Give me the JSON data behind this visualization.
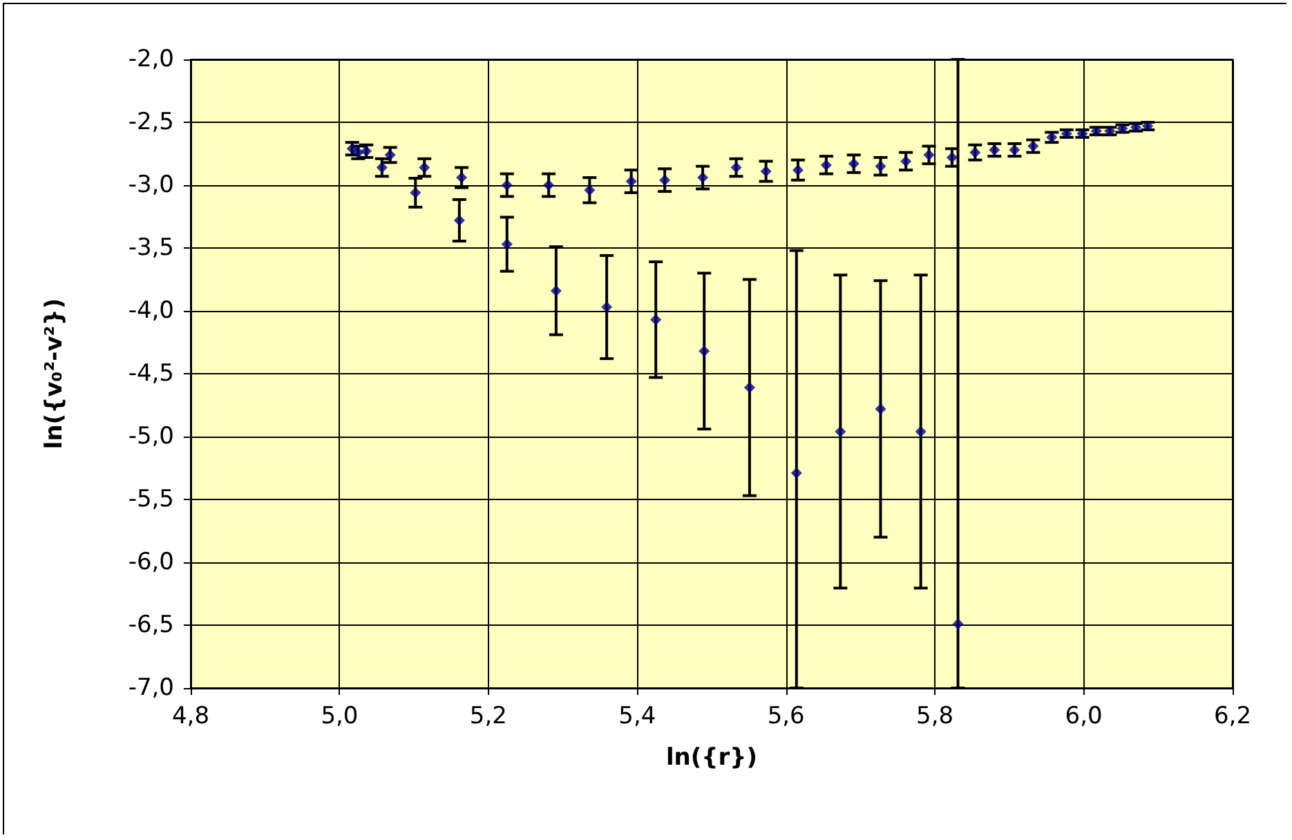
{
  "chart_data": {
    "type": "scatter",
    "xlabel": "ln({r})",
    "ylabel": "ln({v₀²-v²})",
    "xlim": [
      4.8,
      6.2
    ],
    "ylim": [
      -7,
      -2
    ],
    "xticks": [
      {
        "value": 4.8,
        "label": "4,8"
      },
      {
        "value": 5.0,
        "label": "5,0"
      },
      {
        "value": 5.2,
        "label": "5,2"
      },
      {
        "value": 5.4,
        "label": "5,4"
      },
      {
        "value": 5.6,
        "label": "5,6"
      },
      {
        "value": 5.8,
        "label": "5,8"
      },
      {
        "value": 6.0,
        "label": "6,0"
      },
      {
        "value": 6.2,
        "label": "6,2"
      }
    ],
    "yticks": [
      {
        "value": -7,
        "label": "-7,0"
      },
      {
        "value": -6.5,
        "label": "-6,5"
      },
      {
        "value": -6,
        "label": "-6,0"
      },
      {
        "value": -5.5,
        "label": "-5,5"
      },
      {
        "value": -5,
        "label": "-5,0"
      },
      {
        "value": -4.5,
        "label": "-4,5"
      },
      {
        "value": -4,
        "label": "-4,0"
      },
      {
        "value": -3.5,
        "label": "-3,5"
      },
      {
        "value": -3,
        "label": "-3,0"
      },
      {
        "value": -2.5,
        "label": "-2,5"
      },
      {
        "value": -2,
        "label": "-2,0"
      }
    ],
    "grid": true,
    "marker": "diamond",
    "series": [
      {
        "color": "#000080",
        "x": [
          5.017,
          5.025,
          5.036,
          5.057,
          5.068,
          5.114,
          5.164,
          5.225,
          5.281,
          5.336,
          5.392,
          5.437,
          5.488,
          5.533,
          5.573,
          5.616,
          5.654,
          5.691,
          5.727,
          5.761,
          5.792,
          5.823,
          5.854,
          5.88,
          5.907,
          5.932,
          5.957,
          5.977,
          5.998,
          6.017,
          6.035,
          6.052,
          6.07,
          6.086
        ],
        "values": [
          -2.71,
          -2.74,
          -2.73,
          -2.86,
          -2.76,
          -2.86,
          -2.94,
          -3.0,
          -3.0,
          -3.04,
          -2.97,
          -2.96,
          -2.94,
          -2.86,
          -2.89,
          -2.88,
          -2.84,
          -2.83,
          -2.85,
          -2.81,
          -2.76,
          -2.78,
          -2.74,
          -2.72,
          -2.72,
          -2.69,
          -2.62,
          -2.59,
          -2.59,
          -2.57,
          -2.57,
          -2.55,
          -2.54,
          -2.53
        ],
        "errors": [
          0.05,
          0.05,
          0.05,
          0.07,
          0.06,
          0.07,
          0.08,
          0.09,
          0.09,
          0.1,
          0.09,
          0.09,
          0.09,
          0.07,
          0.08,
          0.08,
          0.07,
          0.07,
          0.07,
          0.07,
          0.07,
          0.07,
          0.06,
          0.05,
          0.05,
          0.05,
          0.04,
          0.03,
          0.03,
          0.03,
          0.03,
          0.03,
          0.03,
          0.03
        ]
      },
      {
        "color": "#000080",
        "x": [
          5.102,
          5.161,
          5.225,
          5.291,
          5.359,
          5.425,
          5.49,
          5.551,
          5.614,
          5.673,
          5.727,
          5.781,
          5.831
        ],
        "values": [
          -3.06,
          -3.28,
          -3.47,
          -3.84,
          -3.97,
          -4.07,
          -4.32,
          -4.61,
          -5.29,
          -4.96,
          -4.78,
          -4.96,
          -6.49
        ],
        "errors": [
          0.115,
          0.165,
          0.215,
          0.35,
          0.41,
          0.46,
          0.62,
          0.86,
          [
            -7.0,
            -3.52
          ],
          1.245,
          1.02,
          1.245,
          [
            -7.0,
            -2.0
          ]
        ]
      }
    ]
  }
}
